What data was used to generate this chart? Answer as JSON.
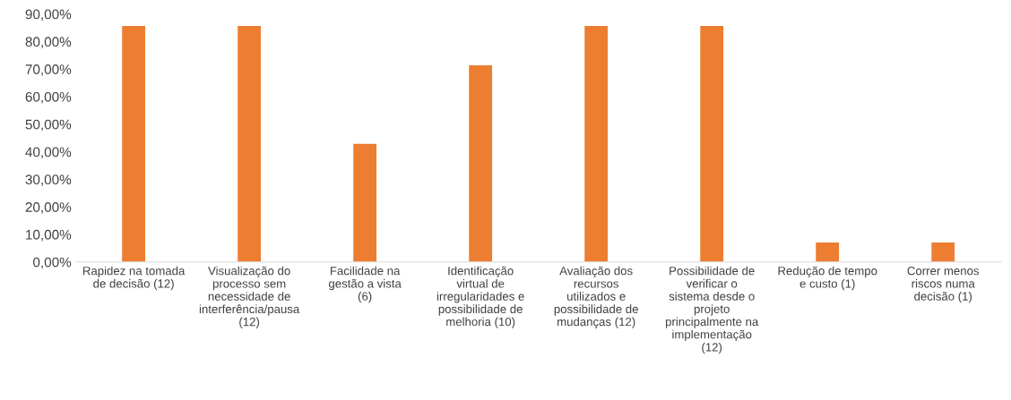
{
  "chart_data": {
    "type": "bar",
    "categories": [
      "Rapidez na tomada de decisão (12)",
      "Visualização do processo sem necessidade de interferência/pausa (12)",
      "Facilidade na gestão a vista (6)",
      "Identificação virtual de irregularidades e possibilidade de melhoria (10)",
      "Avaliação dos recursos utilizados e possibilidade de mudanças (12)",
      "Possibilidade de verificar o sistema desde o projeto principalmente na implementação (12)",
      "Redução de tempo e custo (1)",
      "Correr menos riscos numa decisão (1)"
    ],
    "values": [
      85.7,
      85.7,
      42.9,
      71.4,
      85.7,
      85.7,
      7.1,
      7.1
    ],
    "color": "#ed7d31",
    "ylim": [
      0,
      90
    ],
    "yticks": [
      {
        "value": 0,
        "label": "0,00%"
      },
      {
        "value": 10,
        "label": "10,00%"
      },
      {
        "value": 20,
        "label": "20,00%"
      },
      {
        "value": 30,
        "label": "30,00%"
      },
      {
        "value": 40,
        "label": "40,00%"
      },
      {
        "value": 50,
        "label": "50,00%"
      },
      {
        "value": 60,
        "label": "60,00%"
      },
      {
        "value": 70,
        "label": "70,00%"
      },
      {
        "value": 80,
        "label": "80,00%"
      },
      {
        "value": 90,
        "label": "90,00%"
      }
    ],
    "grid": false
  }
}
